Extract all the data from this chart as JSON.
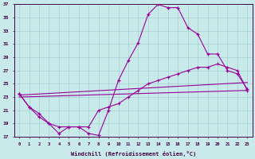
{
  "xlabel": "Windchill (Refroidissement éolien,°C)",
  "xlim": [
    -0.5,
    23.5
  ],
  "ylim": [
    17,
    37
  ],
  "xticks": [
    0,
    1,
    2,
    3,
    4,
    5,
    6,
    7,
    8,
    9,
    10,
    11,
    12,
    13,
    14,
    15,
    16,
    17,
    18,
    19,
    20,
    21,
    22,
    23
  ],
  "yticks": [
    17,
    19,
    21,
    23,
    25,
    27,
    29,
    31,
    33,
    35,
    37
  ],
  "bg_color": "#c8eaea",
  "grid_color": "#aad4d4",
  "line_color": "#990099",
  "line1_x": [
    0,
    1,
    2,
    3,
    4,
    5,
    6,
    7,
    8,
    9,
    10,
    11,
    12,
    13,
    14,
    15,
    16,
    17,
    18,
    19,
    20,
    21,
    22,
    23
  ],
  "line1_y": [
    23.5,
    21.5,
    20.5,
    19.0,
    17.5,
    18.5,
    18.5,
    17.5,
    17.2,
    21.0,
    25.5,
    28.5,
    31.2,
    35.5,
    37.0,
    36.5,
    36.5,
    33.5,
    32.5,
    29.5,
    29.5,
    27.0,
    26.5,
    24.2
  ],
  "line2_x": [
    0,
    23
  ],
  "line2_y": [
    23.0,
    24.0
  ],
  "line3_x": [
    0,
    23
  ],
  "line3_y": [
    23.3,
    25.2
  ],
  "line4_x": [
    0,
    1,
    2,
    3,
    4,
    5,
    6,
    7,
    8,
    9,
    10,
    11,
    12,
    13,
    14,
    15,
    16,
    17,
    18,
    19,
    20,
    21,
    22,
    23
  ],
  "line4_y": [
    23.5,
    21.5,
    20.0,
    19.0,
    18.5,
    18.5,
    18.5,
    18.5,
    21.0,
    21.5,
    22.0,
    23.0,
    24.0,
    25.0,
    25.5,
    26.0,
    26.5,
    27.0,
    27.5,
    27.5,
    28.0,
    27.5,
    27.0,
    24.0
  ]
}
